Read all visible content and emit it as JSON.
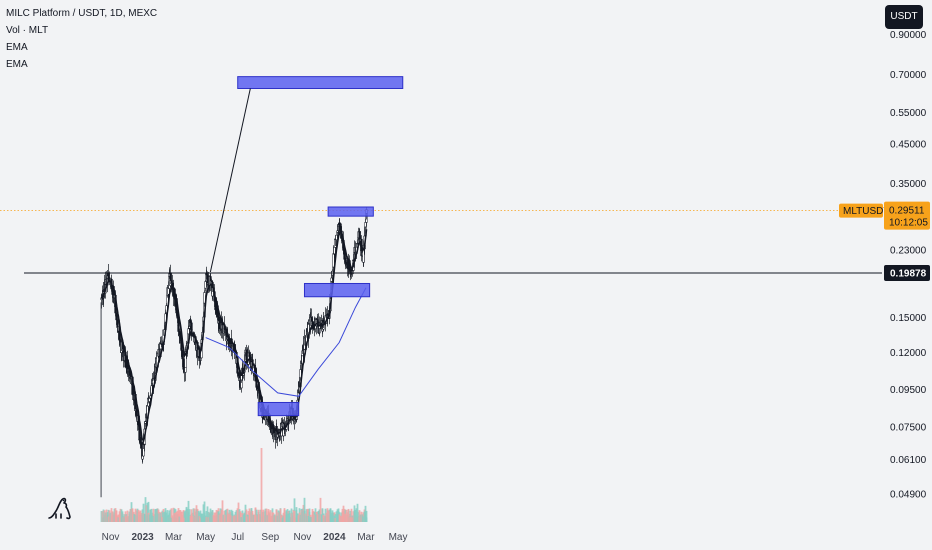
{
  "legend": {
    "symbol": "MILC Platform / USDT, 1D, MEXC",
    "indicators": [
      "Vol · MLT",
      "EMA",
      "EMA"
    ]
  },
  "toolbar": {
    "currency_label": "USDT"
  },
  "colors": {
    "background": "#f2f3f5",
    "candle": "#131722",
    "ema": "#3b49d9",
    "zone_fill": "#5b5ff0",
    "zone_stroke": "#2e31c8",
    "price_tag": "#f7a21b",
    "resistance": "#131722",
    "volume_up": "#86cfc4",
    "volume_down": "#f2a4a4"
  },
  "chart_data": {
    "type": "candlestick",
    "symbol": "MLTUSDT",
    "y_axis": {
      "scale": "log",
      "ticks": [
        "0.90000",
        "0.70000",
        "0.55000",
        "0.45000",
        "0.35000",
        "0.29511",
        "0.23000",
        "0.19878",
        "0.15000",
        "0.12000",
        "0.09500",
        "0.07500",
        "0.06100",
        "0.04900"
      ]
    },
    "x_axis": {
      "ticks": [
        "Nov",
        "2023",
        "Mar",
        "May",
        "Jul",
        "Sep",
        "Nov",
        "2024",
        "Mar",
        "May"
      ]
    },
    "current_price": {
      "label": "MLTUSDT",
      "value": "0.29511",
      "countdown": "10:12:05"
    },
    "resistance_level": {
      "value": "0.19878"
    },
    "price_path": [
      [
        "2022-10-14",
        0.168
      ],
      [
        "2022-10-25",
        0.195
      ],
      [
        "2022-11-05",
        0.178
      ],
      [
        "2022-11-20",
        0.125
      ],
      [
        "2022-12-05",
        0.108
      ],
      [
        "2022-12-20",
        0.082
      ],
      [
        "2022-12-30",
        0.063
      ],
      [
        "2023-01-10",
        0.085
      ],
      [
        "2023-01-25",
        0.108
      ],
      [
        "2023-02-10",
        0.135
      ],
      [
        "2023-02-20",
        0.195
      ],
      [
        "2023-03-05",
        0.165
      ],
      [
        "2023-03-20",
        0.108
      ],
      [
        "2023-04-01",
        0.145
      ],
      [
        "2023-04-20",
        0.115
      ],
      [
        "2023-05-01",
        0.195
      ],
      [
        "2023-05-10",
        0.188
      ],
      [
        "2023-05-25",
        0.148
      ],
      [
        "2023-06-10",
        0.132
      ],
      [
        "2023-06-25",
        0.12
      ],
      [
        "2023-07-05",
        0.098
      ],
      [
        "2023-07-15",
        0.12
      ],
      [
        "2023-08-01",
        0.108
      ],
      [
        "2023-08-15",
        0.083
      ],
      [
        "2023-08-25",
        0.08
      ],
      [
        "2023-09-10",
        0.072
      ],
      [
        "2023-09-25",
        0.074
      ],
      [
        "2023-10-10",
        0.083
      ],
      [
        "2023-10-18",
        0.08
      ],
      [
        "2023-11-01",
        0.12
      ],
      [
        "2023-11-15",
        0.145
      ],
      [
        "2023-12-05",
        0.14
      ],
      [
        "2023-12-20",
        0.15
      ],
      [
        "2024-01-01",
        0.24
      ],
      [
        "2024-01-10",
        0.275
      ],
      [
        "2024-01-20",
        0.22
      ],
      [
        "2024-02-01",
        0.2
      ],
      [
        "2024-02-15",
        0.25
      ],
      [
        "2024-02-24",
        0.22
      ],
      [
        "2024-03-02",
        0.295
      ]
    ],
    "ema_path": [
      [
        "2023-05-01",
        0.132
      ],
      [
        "2023-06-15",
        0.124
      ],
      [
        "2023-08-01",
        0.106
      ],
      [
        "2023-09-15",
        0.093
      ],
      [
        "2023-10-25",
        0.091
      ],
      [
        "2023-12-01",
        0.108
      ],
      [
        "2024-01-10",
        0.128
      ],
      [
        "2024-02-10",
        0.16
      ],
      [
        "2024-03-01",
        0.181
      ]
    ],
    "zones": [
      {
        "from": "2023-08-09",
        "to": "2023-10-25",
        "high": 0.0875,
        "low": 0.0805
      },
      {
        "from": "2023-11-05",
        "to": "2024-03-08",
        "high": 0.186,
        "low": 0.171
      },
      {
        "from": "2023-12-20",
        "to": "2024-03-15",
        "high": 0.302,
        "low": 0.285
      },
      {
        "from": "2023-07-01",
        "to": "2024-05-10",
        "high": 0.69,
        "low": 0.64
      }
    ],
    "projection_line": {
      "from": [
        "2023-05-10",
        0.2
      ],
      "to": [
        "2023-07-25",
        0.64
      ]
    },
    "grid": false,
    "legend_position": "top-left"
  }
}
